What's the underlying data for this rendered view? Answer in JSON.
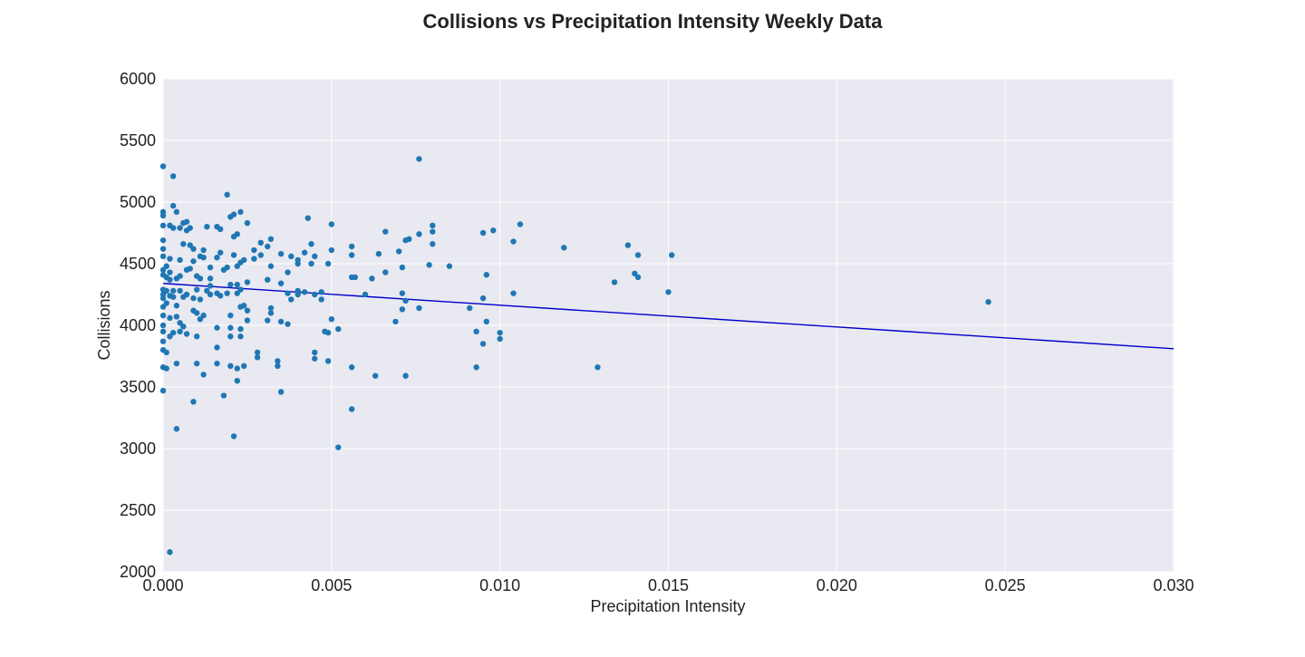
{
  "chart_data": {
    "type": "scatter",
    "title": "Collisions vs Precipitation Intensity Weekly Data",
    "xlabel": "Precipitation Intensity",
    "ylabel": "Collisions",
    "xlim": [
      0,
      0.03
    ],
    "ylim": [
      2000,
      6000
    ],
    "xticks": [
      "0.000",
      "0.005",
      "0.010",
      "0.015",
      "0.020",
      "0.025",
      "0.030"
    ],
    "yticks": [
      "2000",
      "2500",
      "3000",
      "3500",
      "4000",
      "4500",
      "5000",
      "5500",
      "6000"
    ],
    "grid": true,
    "point_color": "#1f77b4",
    "trend_color": "#0000cc",
    "plot_background": "#e9e9f1",
    "trend_line": {
      "x": [
        0,
        0.03
      ],
      "y": [
        4340,
        3810
      ]
    },
    "points": [
      [
        0.0,
        5290
      ],
      [
        0.0,
        4920
      ],
      [
        0.0,
        4890
      ],
      [
        0.0,
        4810
      ],
      [
        0.0,
        4690
      ],
      [
        0.0,
        4620
      ],
      [
        0.0,
        4560
      ],
      [
        0.0,
        4450
      ],
      [
        0.0,
        4410
      ],
      [
        0.0,
        4290
      ],
      [
        0.0,
        4250
      ],
      [
        0.0,
        4220
      ],
      [
        0.0,
        4150
      ],
      [
        0.0,
        4080
      ],
      [
        0.0,
        4000
      ],
      [
        0.0,
        3950
      ],
      [
        0.0,
        3870
      ],
      [
        0.0,
        3800
      ],
      [
        0.0,
        3660
      ],
      [
        0.0,
        3470
      ],
      [
        0.0001,
        4480
      ],
      [
        0.0001,
        4390
      ],
      [
        0.0001,
        4280
      ],
      [
        0.0001,
        4180
      ],
      [
        0.0001,
        3650
      ],
      [
        0.0001,
        3780
      ],
      [
        0.0002,
        4810
      ],
      [
        0.0002,
        4540
      ],
      [
        0.0002,
        4430
      ],
      [
        0.0002,
        4370
      ],
      [
        0.0002,
        4240
      ],
      [
        0.0002,
        4060
      ],
      [
        0.0002,
        3910
      ],
      [
        0.0002,
        2160
      ],
      [
        0.0003,
        5210
      ],
      [
        0.0003,
        4970
      ],
      [
        0.0003,
        4790
      ],
      [
        0.0003,
        4280
      ],
      [
        0.0003,
        4230
      ],
      [
        0.0003,
        3940
      ],
      [
        0.0004,
        4920
      ],
      [
        0.0004,
        4380
      ],
      [
        0.0004,
        4160
      ],
      [
        0.0004,
        4070
      ],
      [
        0.0004,
        3690
      ],
      [
        0.0004,
        3160
      ],
      [
        0.0005,
        4790
      ],
      [
        0.0005,
        4530
      ],
      [
        0.0005,
        4400
      ],
      [
        0.0005,
        4280
      ],
      [
        0.0005,
        4020
      ],
      [
        0.0005,
        3950
      ],
      [
        0.0006,
        4830
      ],
      [
        0.0006,
        4660
      ],
      [
        0.0006,
        4230
      ],
      [
        0.0006,
        3990
      ],
      [
        0.0007,
        4840
      ],
      [
        0.0007,
        4770
      ],
      [
        0.0007,
        4450
      ],
      [
        0.0007,
        4250
      ],
      [
        0.0007,
        3930
      ],
      [
        0.0008,
        4790
      ],
      [
        0.0008,
        4650
      ],
      [
        0.0008,
        4460
      ],
      [
        0.0009,
        4620
      ],
      [
        0.0009,
        4520
      ],
      [
        0.0009,
        4220
      ],
      [
        0.0009,
        4120
      ],
      [
        0.0009,
        3380
      ],
      [
        0.001,
        4400
      ],
      [
        0.001,
        4290
      ],
      [
        0.001,
        4100
      ],
      [
        0.001,
        3910
      ],
      [
        0.001,
        3690
      ],
      [
        0.0011,
        4560
      ],
      [
        0.0011,
        4380
      ],
      [
        0.0011,
        4210
      ],
      [
        0.0011,
        4050
      ],
      [
        0.0012,
        4610
      ],
      [
        0.0012,
        4550
      ],
      [
        0.0012,
        4080
      ],
      [
        0.0012,
        3600
      ],
      [
        0.0013,
        4800
      ],
      [
        0.0013,
        4280
      ],
      [
        0.0014,
        4470
      ],
      [
        0.0014,
        4380
      ],
      [
        0.0014,
        4320
      ],
      [
        0.0014,
        4250
      ],
      [
        0.0016,
        4800
      ],
      [
        0.0016,
        4550
      ],
      [
        0.0016,
        4260
      ],
      [
        0.0016,
        3980
      ],
      [
        0.0016,
        3820
      ],
      [
        0.0016,
        3690
      ],
      [
        0.0017,
        4780
      ],
      [
        0.0017,
        4590
      ],
      [
        0.0017,
        4240
      ],
      [
        0.0018,
        4450
      ],
      [
        0.0018,
        3430
      ],
      [
        0.0019,
        5060
      ],
      [
        0.0019,
        4470
      ],
      [
        0.0019,
        4260
      ],
      [
        0.002,
        4880
      ],
      [
        0.002,
        4330
      ],
      [
        0.002,
        4080
      ],
      [
        0.002,
        3980
      ],
      [
        0.002,
        3910
      ],
      [
        0.002,
        3670
      ],
      [
        0.0021,
        4900
      ],
      [
        0.0021,
        4720
      ],
      [
        0.0021,
        4570
      ],
      [
        0.0021,
        3100
      ],
      [
        0.0022,
        4740
      ],
      [
        0.0022,
        4480
      ],
      [
        0.0022,
        4330
      ],
      [
        0.0022,
        4260
      ],
      [
        0.0022,
        3650
      ],
      [
        0.0022,
        3550
      ],
      [
        0.0023,
        4920
      ],
      [
        0.0023,
        4510
      ],
      [
        0.0023,
        4290
      ],
      [
        0.0023,
        4150
      ],
      [
        0.0023,
        3970
      ],
      [
        0.0023,
        3910
      ],
      [
        0.0024,
        4530
      ],
      [
        0.0024,
        4160
      ],
      [
        0.0024,
        3670
      ],
      [
        0.0025,
        4830
      ],
      [
        0.0025,
        4350
      ],
      [
        0.0025,
        4120
      ],
      [
        0.0025,
        4040
      ],
      [
        0.0027,
        4610
      ],
      [
        0.0027,
        4540
      ],
      [
        0.0028,
        3740
      ],
      [
        0.0028,
        3780
      ],
      [
        0.0029,
        4670
      ],
      [
        0.0029,
        4570
      ],
      [
        0.0031,
        4640
      ],
      [
        0.0031,
        4370
      ],
      [
        0.0031,
        4040
      ],
      [
        0.0032,
        4700
      ],
      [
        0.0032,
        4480
      ],
      [
        0.0032,
        4140
      ],
      [
        0.0032,
        4100
      ],
      [
        0.0034,
        3670
      ],
      [
        0.0034,
        3710
      ],
      [
        0.0035,
        4580
      ],
      [
        0.0035,
        4340
      ],
      [
        0.0035,
        4030
      ],
      [
        0.0035,
        3460
      ],
      [
        0.0037,
        4430
      ],
      [
        0.0037,
        4260
      ],
      [
        0.0037,
        4010
      ],
      [
        0.0038,
        4560
      ],
      [
        0.0038,
        4210
      ],
      [
        0.004,
        4530
      ],
      [
        0.004,
        4500
      ],
      [
        0.004,
        4280
      ],
      [
        0.004,
        4250
      ],
      [
        0.0042,
        4590
      ],
      [
        0.0042,
        4270
      ],
      [
        0.0043,
        4870
      ],
      [
        0.0044,
        4660
      ],
      [
        0.0044,
        4500
      ],
      [
        0.0045,
        4560
      ],
      [
        0.0045,
        4250
      ],
      [
        0.0045,
        3780
      ],
      [
        0.0045,
        3730
      ],
      [
        0.0047,
        4270
      ],
      [
        0.0047,
        4210
      ],
      [
        0.0048,
        3950
      ],
      [
        0.0049,
        4500
      ],
      [
        0.0049,
        3940
      ],
      [
        0.0049,
        3710
      ],
      [
        0.005,
        4820
      ],
      [
        0.005,
        4610
      ],
      [
        0.005,
        4050
      ],
      [
        0.0052,
        3970
      ],
      [
        0.0052,
        3010
      ],
      [
        0.0056,
        4640
      ],
      [
        0.0056,
        4570
      ],
      [
        0.0056,
        4390
      ],
      [
        0.0056,
        3660
      ],
      [
        0.0056,
        3320
      ],
      [
        0.0057,
        4390
      ],
      [
        0.006,
        4250
      ],
      [
        0.0062,
        4380
      ],
      [
        0.0063,
        3590
      ],
      [
        0.0064,
        4580
      ],
      [
        0.0066,
        4760
      ],
      [
        0.0066,
        4430
      ],
      [
        0.0069,
        4030
      ],
      [
        0.007,
        4600
      ],
      [
        0.0071,
        4470
      ],
      [
        0.0071,
        4260
      ],
      [
        0.0071,
        4130
      ],
      [
        0.0072,
        4690
      ],
      [
        0.0072,
        4200
      ],
      [
        0.0072,
        3590
      ],
      [
        0.0073,
        4700
      ],
      [
        0.0076,
        5350
      ],
      [
        0.0076,
        4740
      ],
      [
        0.0076,
        4140
      ],
      [
        0.0079,
        4490
      ],
      [
        0.008,
        4810
      ],
      [
        0.008,
        4760
      ],
      [
        0.008,
        4660
      ],
      [
        0.0085,
        4480
      ],
      [
        0.0091,
        4140
      ],
      [
        0.0093,
        3950
      ],
      [
        0.0093,
        3660
      ],
      [
        0.0095,
        4750
      ],
      [
        0.0095,
        4220
      ],
      [
        0.0095,
        3850
      ],
      [
        0.0096,
        4410
      ],
      [
        0.0096,
        4030
      ],
      [
        0.0098,
        4770
      ],
      [
        0.01,
        3940
      ],
      [
        0.01,
        3890
      ],
      [
        0.0104,
        4680
      ],
      [
        0.0104,
        4260
      ],
      [
        0.0106,
        4820
      ],
      [
        0.0119,
        4630
      ],
      [
        0.0129,
        3660
      ],
      [
        0.0134,
        4350
      ],
      [
        0.0138,
        4650
      ],
      [
        0.014,
        4420
      ],
      [
        0.0141,
        4570
      ],
      [
        0.0141,
        4390
      ],
      [
        0.015,
        4270
      ],
      [
        0.0151,
        4570
      ],
      [
        0.0245,
        4190
      ]
    ]
  }
}
